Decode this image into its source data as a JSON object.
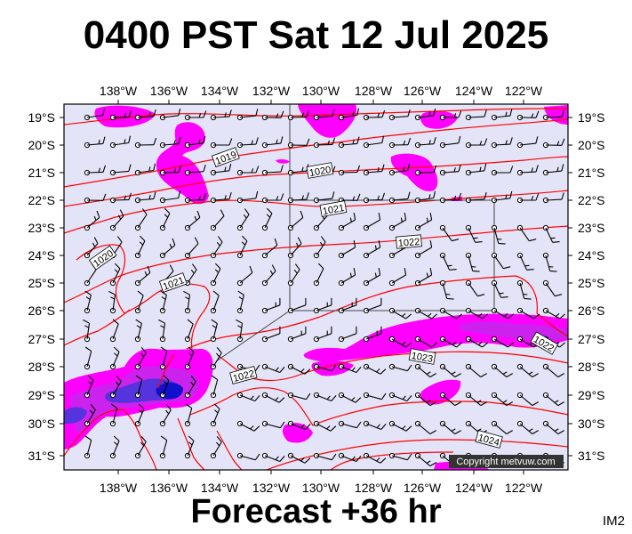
{
  "title": "0400 PST Sat 12 Jul 2025",
  "footer": "Forecast +36 hr",
  "tag": "IM2",
  "credit": "Copyright metvuw.com",
  "lon_labels": [
    "138°W",
    "136°W",
    "134°W",
    "132°W",
    "130°W",
    "128°W",
    "126°W",
    "124°W",
    "122°W"
  ],
  "lat_labels": [
    "19°S",
    "20°S",
    "21°S",
    "22°S",
    "23°S",
    "24°S",
    "25°S",
    "26°S",
    "27°S",
    "28°S",
    "29°S",
    "30°S",
    "31°S"
  ],
  "isobar_labels": [
    {
      "text": "1019"
    },
    {
      "text": "1020"
    },
    {
      "text": "1020"
    },
    {
      "text": "1021"
    },
    {
      "text": "1021"
    },
    {
      "text": "1022"
    },
    {
      "text": "1022"
    },
    {
      "text": "1023"
    },
    {
      "text": "1024"
    },
    {
      "text": "1022"
    }
  ],
  "colors": {
    "ocean": "#e4e4f8",
    "isobar": "#ff0000",
    "rain_light": "#ff00ff",
    "rain_mid": "#cc22ee",
    "rain_heavy": "#5533dd",
    "rain_core": "#1111cc",
    "box": "#444444"
  }
}
